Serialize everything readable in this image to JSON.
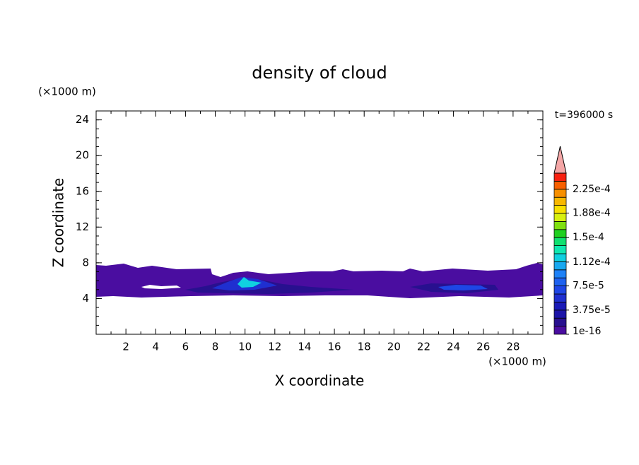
{
  "chart_data": {
    "type": "contour",
    "title": "density of cloud",
    "x_label": "X coordinate",
    "y_label": "Z coordinate",
    "x_unit": "(×1000 m)",
    "y_unit": "(×1000 m)",
    "time_label": "t=396000 s",
    "xlim": [
      0,
      30
    ],
    "ylim": [
      0,
      25
    ],
    "xticks": [
      2,
      4,
      6,
      8,
      10,
      12,
      14,
      16,
      18,
      20,
      22,
      24,
      26,
      28
    ],
    "yticks": [
      4,
      8,
      12,
      16,
      20,
      24
    ],
    "colorbar": {
      "clim": [
        1e-16,
        0.00025
      ],
      "colors": [
        "#4a0da0",
        "#28108f",
        "#1c14a8",
        "#1a1ab8",
        "#1f2fd0",
        "#1e46e6",
        "#1e62f0",
        "#1e82f8",
        "#18a8f0",
        "#10d0e0",
        "#10e8b0",
        "#10e070",
        "#20d020",
        "#80e010",
        "#d8f010",
        "#f8e000",
        "#f8b800",
        "#f89000",
        "#f86000",
        "#f82010"
      ],
      "extend_color": "#f4a6a6",
      "ticks": [
        {
          "value": 1e-16,
          "label": "1e-16"
        },
        {
          "value": 3.75e-05,
          "label": "3.75e-5"
        },
        {
          "value": 7.5e-05,
          "label": "7.5e-5"
        },
        {
          "value": 0.000112,
          "label": "1.12e-4"
        },
        {
          "value": 0.00015,
          "label": "1.5e-4"
        },
        {
          "value": 0.000188,
          "label": "1.88e-4"
        },
        {
          "value": 0.000225,
          "label": "2.25e-4"
        }
      ]
    }
  }
}
